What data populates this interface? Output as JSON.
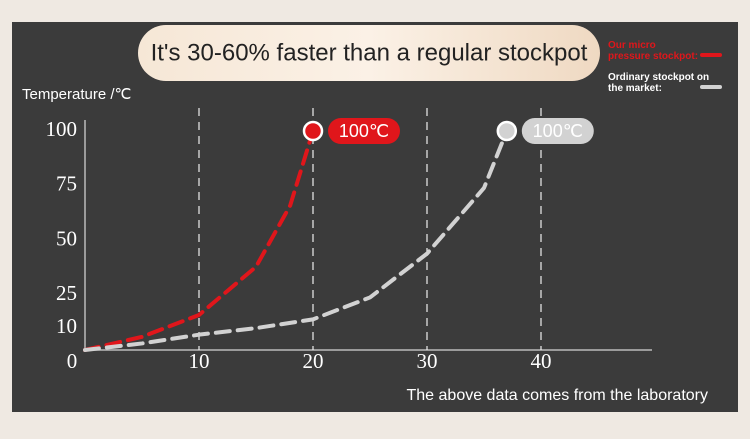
{
  "chart_data": {
    "type": "line",
    "title": "It's 30-60% faster than a regular stockpot",
    "y_label": "Temperature /℃",
    "note": "The above data comes from the laboratory",
    "origin_label": "0",
    "xlim": [
      0,
      50
    ],
    "xticks": [
      10,
      20,
      30,
      40
    ],
    "ylim": [
      0,
      100
    ],
    "yticks": [
      10,
      25,
      50,
      75,
      100
    ],
    "grid": true,
    "legend": "upper right",
    "series": [
      {
        "name": "Our micro pressure stockpot:",
        "color": "#e0161b",
        "x": [
          0,
          5,
          10,
          15,
          18,
          20
        ],
        "values": [
          0,
          6,
          16,
          38,
          66,
          100
        ],
        "value_labels": [
          null,
          null,
          null,
          null,
          null,
          "100℃"
        ]
      },
      {
        "name": "Ordinary stockpot on the market:",
        "color": "#d2d2d2",
        "x": [
          0,
          5,
          10,
          15,
          20,
          25,
          30,
          35,
          37
        ],
        "values": [
          0,
          3,
          7,
          10,
          14,
          24,
          44,
          74,
          100
        ],
        "value_labels": [
          null,
          null,
          null,
          null,
          null,
          null,
          null,
          null,
          "100℃"
        ]
      }
    ]
  }
}
